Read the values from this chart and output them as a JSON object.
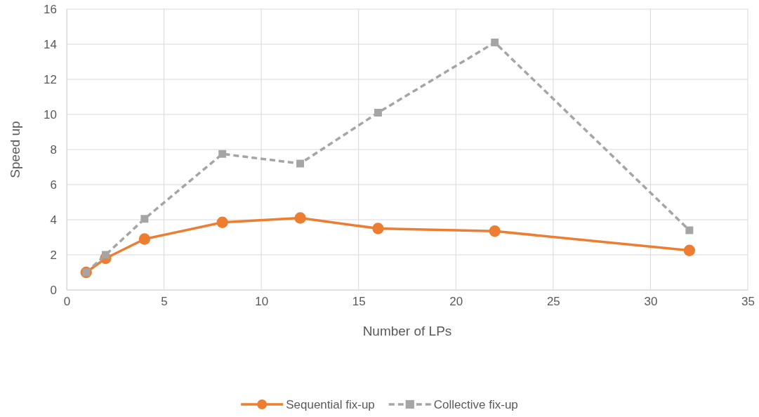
{
  "chart_data": {
    "type": "line",
    "xlabel": "Number of LPs",
    "ylabel": "Speed up",
    "x": [
      1,
      2,
      4,
      8,
      12,
      16,
      22,
      32
    ],
    "series": [
      {
        "name": "Sequential fix-up",
        "color": "#ed7d31",
        "marker": "circle",
        "line_style": "solid",
        "values": [
          1,
          1.8,
          2.9,
          3.85,
          4.1,
          3.5,
          3.35,
          2.25
        ]
      },
      {
        "name": "Collective fix-up",
        "color": "#a5a5a5",
        "marker": "square",
        "line_style": "dashed",
        "values": [
          1,
          2,
          4.05,
          7.75,
          7.2,
          10.1,
          14.1,
          3.4
        ]
      }
    ],
    "xlim": [
      0,
      35
    ],
    "xticks": [
      0,
      5,
      10,
      15,
      20,
      25,
      30,
      35
    ],
    "ylim": [
      0,
      16
    ],
    "yticks": [
      0,
      2,
      4,
      6,
      8,
      10,
      12,
      14,
      16
    ],
    "grid": true,
    "legend": "bottom"
  }
}
